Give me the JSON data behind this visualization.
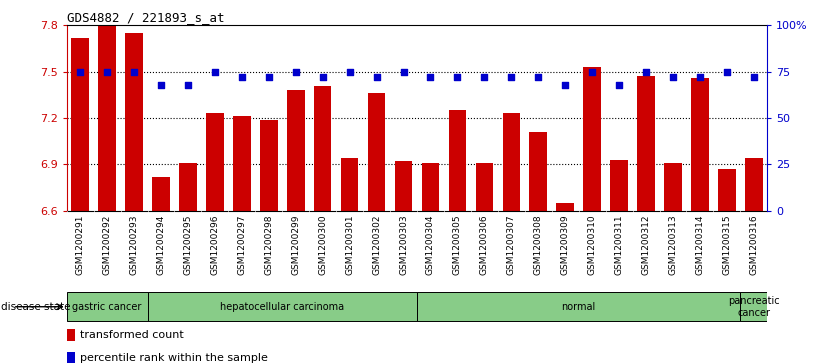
{
  "title": "GDS4882 / 221893_s_at",
  "categories": [
    "GSM1200291",
    "GSM1200292",
    "GSM1200293",
    "GSM1200294",
    "GSM1200295",
    "GSM1200296",
    "GSM1200297",
    "GSM1200298",
    "GSM1200299",
    "GSM1200300",
    "GSM1200301",
    "GSM1200302",
    "GSM1200303",
    "GSM1200304",
    "GSM1200305",
    "GSM1200306",
    "GSM1200307",
    "GSM1200308",
    "GSM1200309",
    "GSM1200310",
    "GSM1200311",
    "GSM1200312",
    "GSM1200313",
    "GSM1200314",
    "GSM1200315",
    "GSM1200316"
  ],
  "bar_values": [
    7.72,
    7.8,
    7.75,
    6.82,
    6.91,
    7.23,
    7.21,
    7.19,
    7.38,
    7.41,
    6.94,
    7.36,
    6.92,
    6.91,
    7.25,
    6.91,
    7.23,
    7.11,
    6.65,
    7.53,
    6.93,
    7.47,
    6.91,
    7.46,
    6.87,
    6.94
  ],
  "percentile_values": [
    75,
    75,
    75,
    68,
    68,
    75,
    72,
    72,
    75,
    72,
    75,
    72,
    75,
    72,
    72,
    72,
    72,
    72,
    68,
    75,
    68,
    75,
    72,
    72,
    75,
    72
  ],
  "ylim_left": [
    6.6,
    7.8
  ],
  "ylim_right": [
    0,
    100
  ],
  "yticks_left": [
    6.6,
    6.9,
    7.2,
    7.5,
    7.8
  ],
  "yticks_right": [
    0,
    25,
    50,
    75,
    100
  ],
  "ytick_labels_right": [
    "0",
    "25",
    "50",
    "75",
    "100%"
  ],
  "bar_color": "#cc0000",
  "percentile_color": "#0000cc",
  "xtick_bg": "#c8c8c8",
  "disease_groups": [
    {
      "label": "gastric cancer",
      "start": 0,
      "end": 3
    },
    {
      "label": "hepatocellular carcinoma",
      "start": 3,
      "end": 13
    },
    {
      "label": "normal",
      "start": 13,
      "end": 25
    },
    {
      "label": "pancreatic\ncancer",
      "start": 25,
      "end": 26
    }
  ],
  "group_boundaries": [
    3,
    13,
    25
  ],
  "disease_label": "disease state",
  "green_color": "#88cc88",
  "legend_items": [
    {
      "color": "#cc0000",
      "label": "transformed count"
    },
    {
      "color": "#0000cc",
      "label": "percentile rank within the sample"
    }
  ]
}
